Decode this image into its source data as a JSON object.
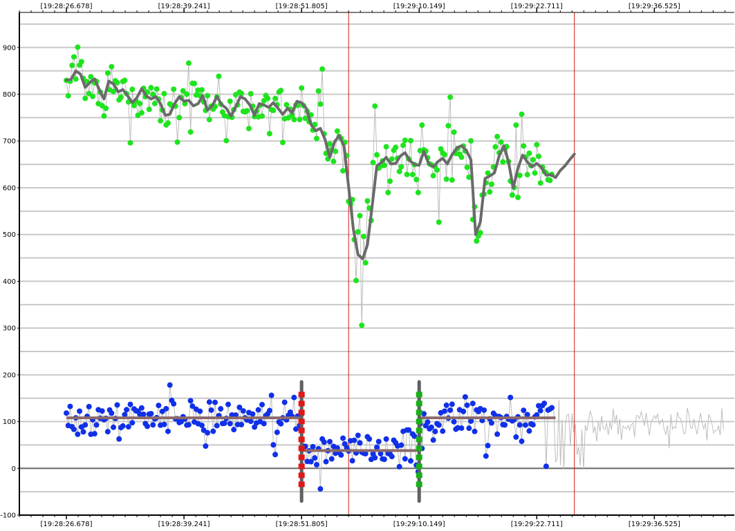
{
  "chart_data": {
    "type": "scatter",
    "title": "",
    "xlabel": "",
    "ylabel": "",
    "ylim": [
      -100,
      975
    ],
    "xlim_seconds": [
      -10,
      142
    ],
    "x_ticks": [
      {
        "t": 0,
        "label": "[19:28:26.678]"
      },
      {
        "t": 25,
        "label": "[19:28:39.241]"
      },
      {
        "t": 50,
        "label": "[19:28:51.805]"
      },
      {
        "t": 75,
        "label": "[19:29:10.149]"
      },
      {
        "t": 100,
        "label": "[19:29:22.711]"
      },
      {
        "t": 125,
        "label": "[19:29:36.525]"
      }
    ],
    "y_ticks": [
      -100,
      0,
      100,
      200,
      300,
      400,
      500,
      600,
      700,
      800,
      900
    ],
    "gridlines": true,
    "event_markers_seconds": [
      60,
      108
    ],
    "colors": {
      "upper_points": "#1ee41e",
      "lower_points": "#1030e8",
      "smoothed_line": "#6a6a6a",
      "segment_mean": "#8c6a6a",
      "event_line": "#d01818",
      "raw_line": "#bdbdbd",
      "change_start": "#e01818",
      "change_end": "#18b018",
      "change_bar": "#606060"
    },
    "series": [
      {
        "kind": "smoothed",
        "values": [
          [
            0,
            830
          ],
          [
            1,
            832
          ],
          [
            2,
            850
          ],
          [
            3,
            843
          ],
          [
            4,
            815
          ],
          [
            5,
            825
          ],
          [
            6,
            833
          ],
          [
            7,
            810
          ],
          [
            8,
            790
          ],
          [
            9,
            828
          ],
          [
            10,
            822
          ],
          [
            11,
            805
          ],
          [
            12,
            810
          ],
          [
            13,
            797
          ],
          [
            14,
            782
          ],
          [
            15,
            793
          ],
          [
            16,
            812
          ],
          [
            17,
            796
          ],
          [
            18,
            790
          ],
          [
            19,
            795
          ],
          [
            20,
            780
          ],
          [
            21,
            755
          ],
          [
            22,
            757
          ],
          [
            23,
            780
          ],
          [
            24,
            795
          ],
          [
            25,
            785
          ],
          [
            26,
            787
          ],
          [
            27,
            775
          ],
          [
            28,
            780
          ],
          [
            29,
            797
          ],
          [
            30,
            766
          ],
          [
            31,
            775
          ],
          [
            32,
            795
          ],
          [
            33,
            778
          ],
          [
            34,
            770
          ],
          [
            35,
            753
          ],
          [
            36,
            773
          ],
          [
            37,
            795
          ],
          [
            38,
            790
          ],
          [
            39,
            777
          ],
          [
            40,
            755
          ],
          [
            41,
            780
          ],
          [
            42,
            777
          ],
          [
            43,
            772
          ],
          [
            44,
            782
          ],
          [
            45,
            770
          ],
          [
            46,
            757
          ],
          [
            47,
            770
          ],
          [
            48,
            760
          ],
          [
            49,
            785
          ],
          [
            50,
            782
          ],
          [
            51,
            770
          ],
          [
            52,
            735
          ],
          [
            53,
            722
          ],
          [
            54,
            727
          ],
          [
            55,
            703
          ],
          [
            56,
            665
          ],
          [
            57,
            698
          ],
          [
            58,
            712
          ],
          [
            59,
            689
          ],
          [
            60,
            602
          ],
          [
            61,
            512
          ],
          [
            62,
            457
          ],
          [
            63,
            448
          ],
          [
            64,
            478
          ],
          [
            65,
            560
          ],
          [
            66,
            647
          ],
          [
            67,
            654
          ],
          [
            68,
            665
          ],
          [
            69,
            651
          ],
          [
            70,
            652
          ],
          [
            71,
            668
          ],
          [
            72,
            675
          ],
          [
            73,
            658
          ],
          [
            74,
            650
          ],
          [
            75,
            648
          ],
          [
            76,
            678
          ],
          [
            77,
            652
          ],
          [
            78,
            645
          ],
          [
            79,
            656
          ],
          [
            80,
            663
          ],
          [
            81,
            651
          ],
          [
            82,
            671
          ],
          [
            83,
            685
          ],
          [
            84,
            690
          ],
          [
            85,
            680
          ],
          [
            86,
            660
          ],
          [
            87,
            500
          ],
          [
            88,
            527
          ],
          [
            89,
            620
          ],
          [
            90,
            625
          ],
          [
            91,
            632
          ],
          [
            92,
            668
          ],
          [
            93,
            690
          ],
          [
            94,
            655
          ],
          [
            95,
            600
          ],
          [
            96,
            642
          ],
          [
            97,
            670
          ],
          [
            98,
            655
          ],
          [
            99,
            645
          ],
          [
            100,
            652
          ],
          [
            101,
            643
          ],
          [
            102,
            627
          ],
          [
            103,
            628
          ],
          [
            104,
            622
          ],
          [
            105,
            637
          ],
          [
            106,
            647
          ],
          [
            107,
            660
          ],
          [
            108,
            672
          ]
        ]
      },
      {
        "kind": "segment_means",
        "values": [
          {
            "t0": 0,
            "t1": 50,
            "y": 108
          },
          {
            "t0": 50,
            "t1": 75,
            "y": 38
          },
          {
            "t0": 75,
            "t1": 104,
            "y": 108
          }
        ]
      },
      {
        "kind": "change_points",
        "values": [
          {
            "t": 50,
            "y0": -70,
            "y1": 185,
            "type": "start"
          },
          {
            "t": 75,
            "y0": -70,
            "y1": 185,
            "type": "end"
          }
        ]
      }
    ]
  }
}
